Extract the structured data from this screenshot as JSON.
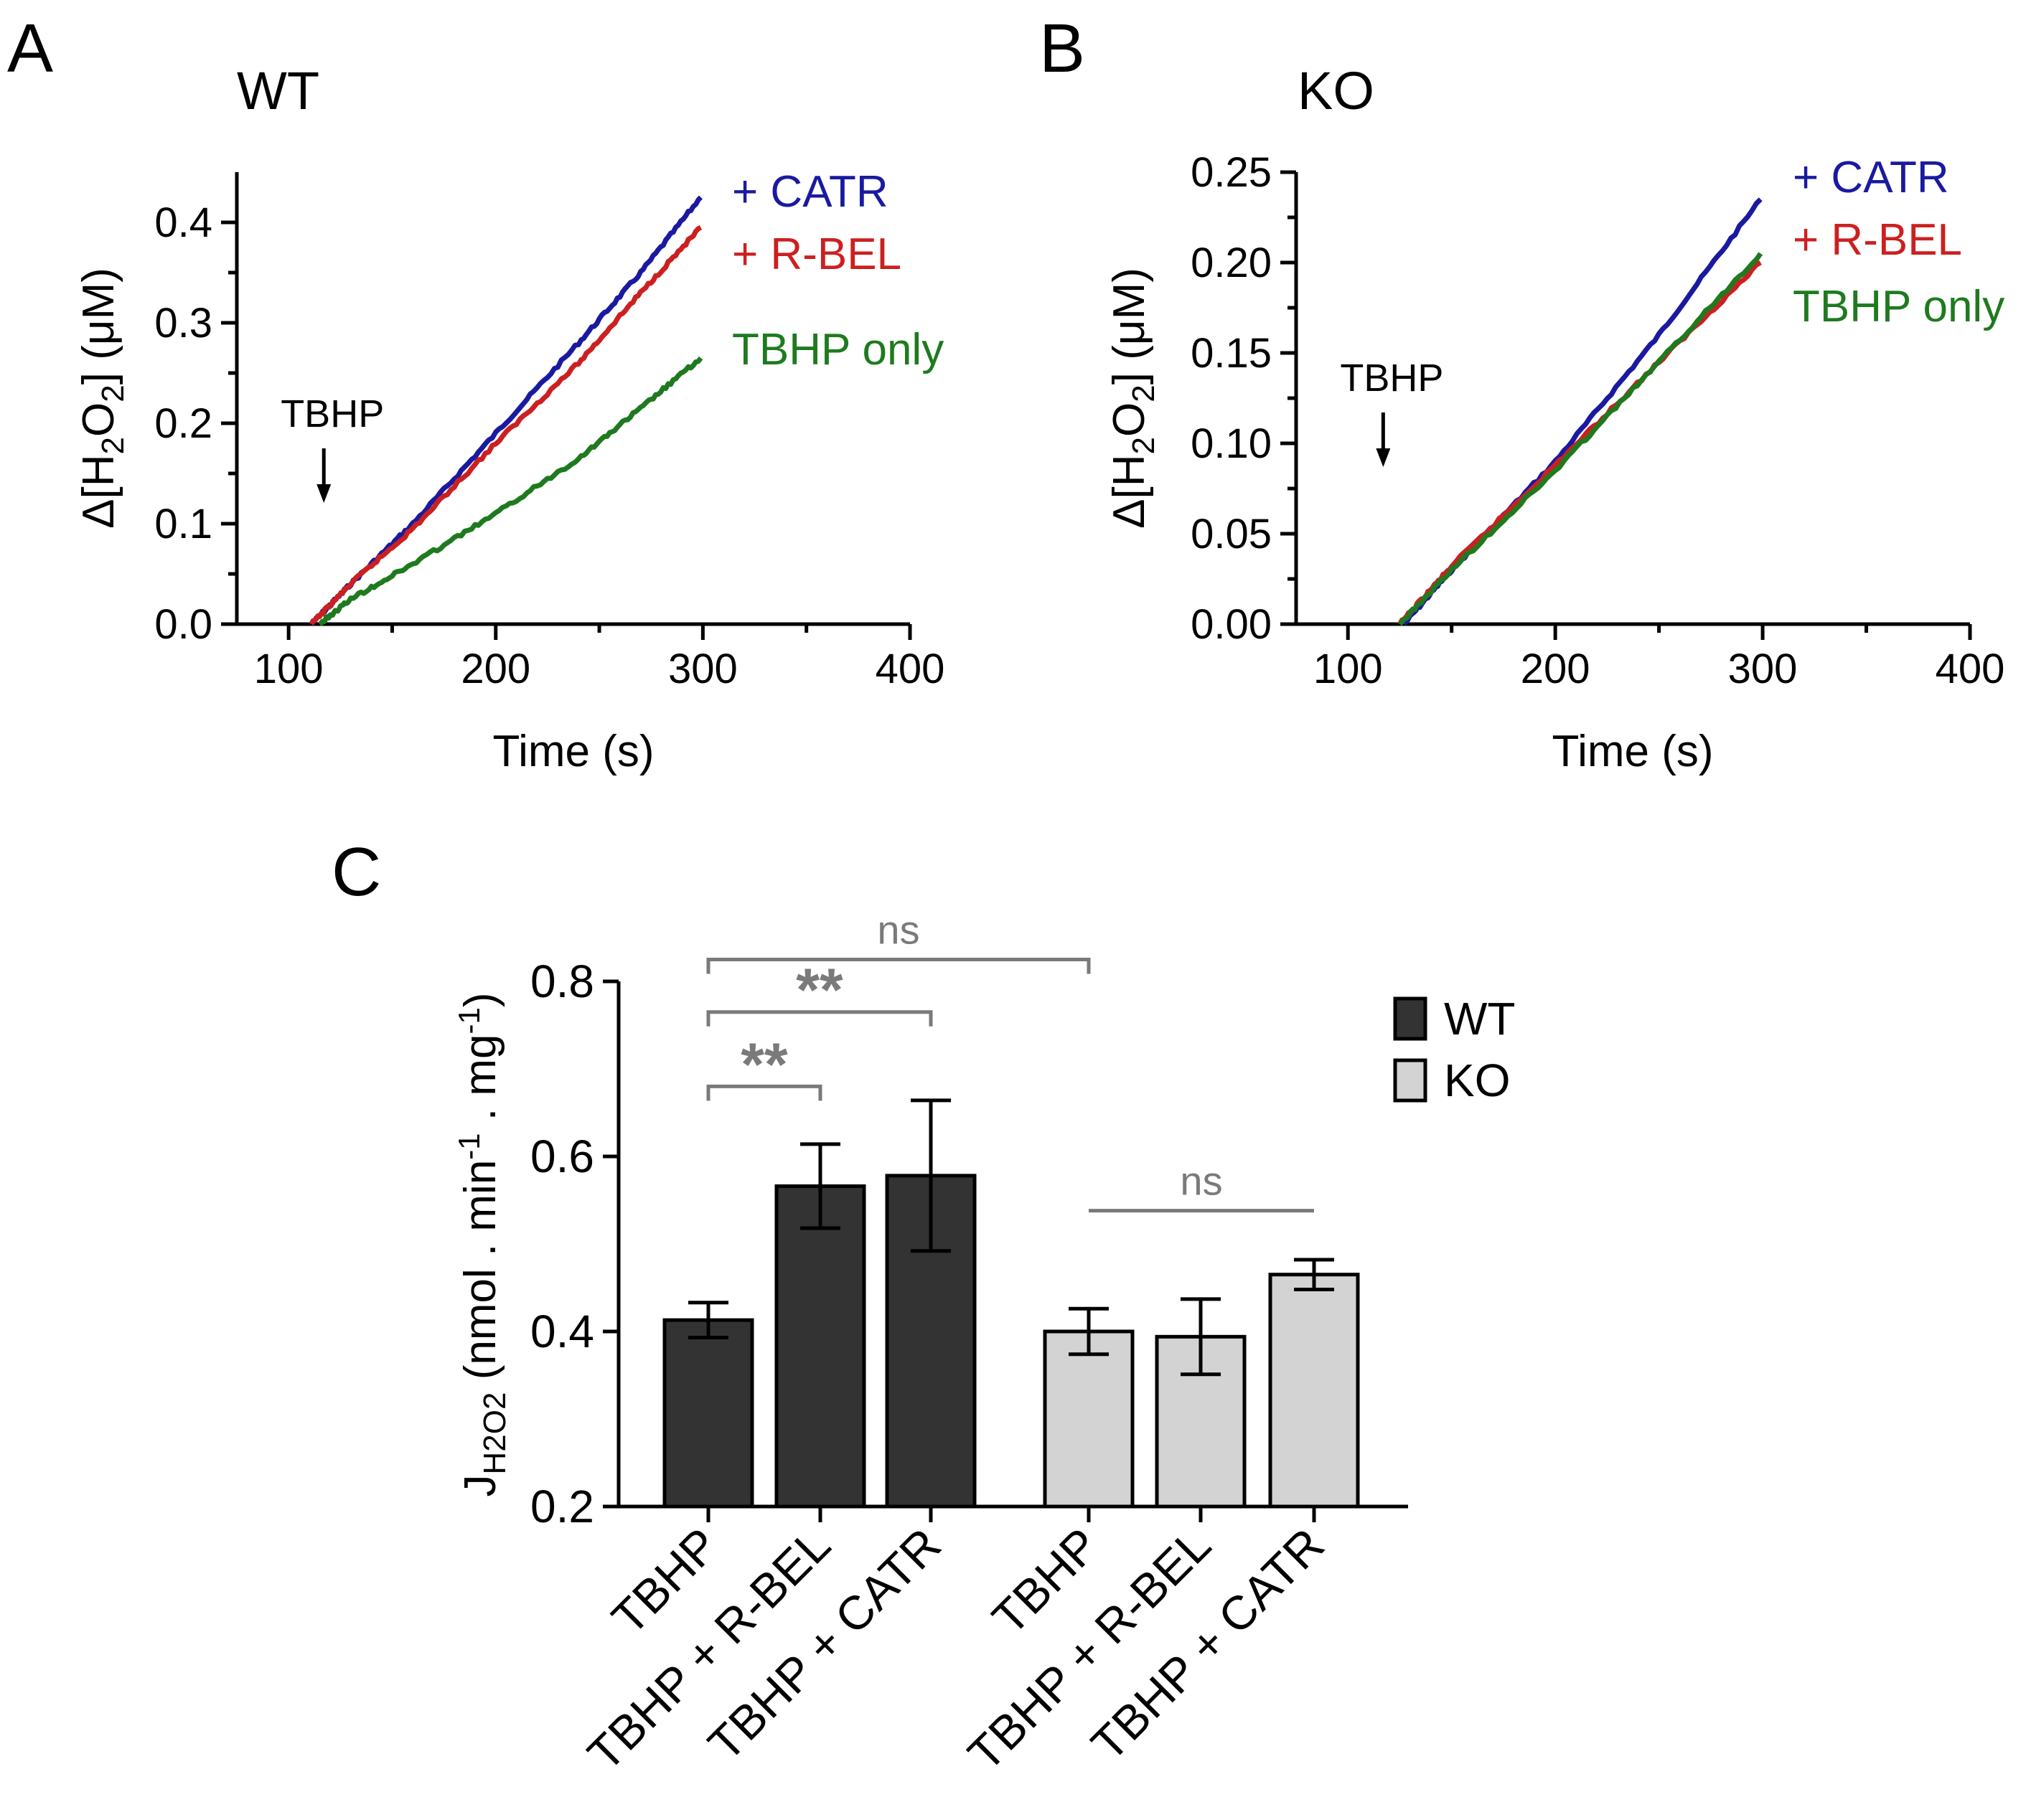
{
  "chart_data": [
    {
      "panel": "A",
      "type": "line",
      "title": "WT",
      "xlabel": "Time (s)",
      "ylabel": "Δ[H2O2] (μM)",
      "xlim": [
        75,
        400
      ],
      "ylim": [
        0,
        0.45
      ],
      "xticks": [
        100,
        200,
        300,
        400
      ],
      "yticks": [
        0.0,
        0.1,
        0.2,
        0.3,
        0.4
      ],
      "ytick_labels": [
        "0.0",
        "0.1",
        "0.2",
        "0.3",
        "0.4"
      ],
      "annotation": {
        "text": "TBHP",
        "x": 117
      },
      "series": [
        {
          "name": "+ CATR",
          "color": "#1a1aa0",
          "x": [
            111,
            130,
            160,
            200,
            240,
            270,
            299
          ],
          "y": [
            0.0,
            0.04,
            0.1,
            0.19,
            0.28,
            0.35,
            0.425
          ]
        },
        {
          "name": "+ R-BEL",
          "color": "#cc2020",
          "x": [
            111,
            130,
            160,
            200,
            240,
            270,
            299
          ],
          "y": [
            0.0,
            0.04,
            0.095,
            0.18,
            0.26,
            0.33,
            0.395
          ]
        },
        {
          "name": "TBHP only",
          "color": "#1f7a1f",
          "x": [
            115,
            130,
            160,
            200,
            240,
            270,
            299
          ],
          "y": [
            0.0,
            0.025,
            0.06,
            0.11,
            0.165,
            0.215,
            0.265
          ]
        }
      ]
    },
    {
      "panel": "B",
      "type": "line",
      "title": "KO",
      "xlabel": "Time (s)",
      "ylabel": "Δ[H2O2] (μM)",
      "xlim": [
        75,
        400
      ],
      "ylim": [
        0,
        0.25
      ],
      "xticks": [
        100,
        200,
        300,
        400
      ],
      "yticks": [
        0.0,
        0.05,
        0.1,
        0.15,
        0.2,
        0.25
      ],
      "ytick_labels": [
        "0.00",
        "0.05",
        "0.10",
        "0.15",
        "0.20",
        "0.25"
      ],
      "annotation": {
        "text": "TBHP",
        "x": 117
      },
      "series": [
        {
          "name": "+ CATR",
          "color": "#1a1aa0",
          "x": [
            127,
            150,
            200,
            250,
            299
          ],
          "y": [
            0.0,
            0.03,
            0.09,
            0.16,
            0.235
          ]
        },
        {
          "name": "+ R-BEL",
          "color": "#cc2020",
          "x": [
            125,
            150,
            200,
            250,
            299
          ],
          "y": [
            0.0,
            0.032,
            0.088,
            0.145,
            0.2
          ]
        },
        {
          "name": "TBHP only",
          "color": "#1f7a1f",
          "x": [
            125,
            150,
            200,
            250,
            299
          ],
          "y": [
            0.0,
            0.03,
            0.085,
            0.145,
            0.205
          ]
        }
      ]
    },
    {
      "panel": "C",
      "type": "bar",
      "ylabel_main": "J",
      "ylabel_sub": "H2O2",
      "ylabel_rest": " (nmol . min",
      "ylabel_sup1": "-1",
      "ylabel_mid": " . mg",
      "ylabel_sup2": "-1",
      "ylabel_end": ")",
      "ylim": [
        0.2,
        0.8
      ],
      "yticks": [
        0.2,
        0.4,
        0.6,
        0.8
      ],
      "ytick_labels": [
        "0.2",
        "0.4",
        "0.6",
        "0.8"
      ],
      "categories": [
        "TBHP",
        "TBHP + R-BEL",
        "TBHP + CATR",
        "TBHP",
        "TBHP + R-BEL",
        "TBHP + CATR"
      ],
      "groups": [
        "WT",
        "WT",
        "WT",
        "KO",
        "KO",
        "KO"
      ],
      "values": [
        0.413,
        0.566,
        0.578,
        0.4,
        0.394,
        0.465
      ],
      "errors": [
        0.02,
        0.048,
        0.086,
        0.026,
        0.043,
        0.017
      ],
      "legend": [
        {
          "name": "WT",
          "color": "#333333"
        },
        {
          "name": "KO",
          "color": "#d3d3d3"
        }
      ],
      "significance": [
        {
          "from": 0,
          "to": 3,
          "label": "ns",
          "y": 0.825
        },
        {
          "from": 0,
          "to": 2,
          "label": "**",
          "y": 0.765
        },
        {
          "from": 0,
          "to": 1,
          "label": "**",
          "y": 0.68
        },
        {
          "from": 3,
          "to": 5,
          "label": "ns",
          "y": 0.538
        }
      ]
    }
  ]
}
